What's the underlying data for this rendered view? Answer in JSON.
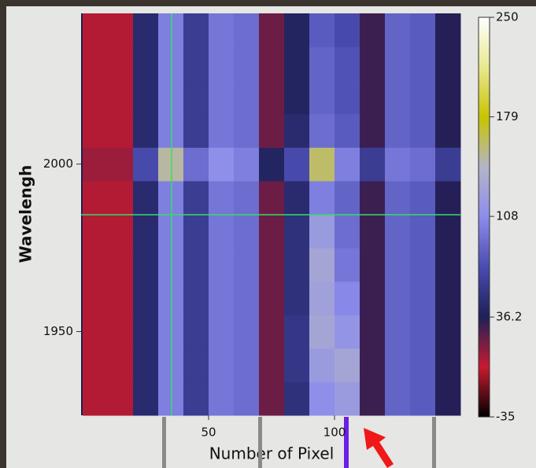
{
  "chart_data": {
    "type": "heatmap",
    "x_label": "Number of Pixel",
    "y_label": "Wavelengh",
    "x_bins": [
      0,
      10,
      20,
      30,
      40,
      50,
      60,
      70,
      80,
      90,
      100,
      110,
      120,
      130,
      140,
      150
    ],
    "y_bins": [
      1925,
      1935,
      1945,
      1955,
      1965,
      1975,
      1985,
      1995,
      2005,
      2015,
      2025,
      2035,
      2045
    ],
    "z": [
      [
        5,
        5,
        45,
        100,
        60,
        95,
        90,
        20,
        50,
        110,
        120,
        30,
        85,
        80,
        35
      ],
      [
        5,
        5,
        45,
        100,
        60,
        95,
        90,
        20,
        55,
        120,
        130,
        30,
        85,
        80,
        35
      ],
      [
        5,
        5,
        45,
        100,
        60,
        95,
        90,
        20,
        55,
        130,
        115,
        30,
        85,
        80,
        35
      ],
      [
        5,
        5,
        45,
        100,
        60,
        95,
        90,
        20,
        50,
        125,
        105,
        30,
        85,
        80,
        35
      ],
      [
        5,
        5,
        45,
        100,
        60,
        95,
        90,
        20,
        50,
        130,
        95,
        30,
        85,
        80,
        35
      ],
      [
        5,
        5,
        45,
        100,
        60,
        95,
        90,
        20,
        50,
        120,
        90,
        30,
        85,
        80,
        35
      ],
      [
        5,
        5,
        45,
        100,
        60,
        95,
        90,
        20,
        45,
        100,
        85,
        30,
        85,
        80,
        35
      ],
      [
        10,
        10,
        70,
        150,
        90,
        110,
        100,
        40,
        70,
        160,
        100,
        60,
        95,
        90,
        60
      ],
      [
        5,
        5,
        45,
        100,
        60,
        95,
        90,
        20,
        45,
        90,
        80,
        30,
        85,
        80,
        35
      ],
      [
        5,
        5,
        45,
        100,
        60,
        95,
        90,
        20,
        40,
        85,
        75,
        30,
        85,
        80,
        35
      ],
      [
        5,
        5,
        45,
        100,
        60,
        95,
        90,
        20,
        40,
        85,
        75,
        30,
        85,
        80,
        35
      ],
      [
        5,
        5,
        45,
        100,
        60,
        95,
        90,
        20,
        40,
        80,
        70,
        30,
        85,
        80,
        35
      ]
    ],
    "xlim": [
      0,
      150
    ],
    "ylim": [
      1925,
      2045
    ],
    "xticks": [
      50,
      100
    ],
    "yticks": [
      1950,
      2000
    ],
    "clim": [
      -35,
      250
    ],
    "cticks": [
      250,
      179,
      108,
      36.2,
      -35
    ],
    "colorscale": [
      "#000000",
      "#c81a30",
      "#1e2058",
      "#4a4cb0",
      "#8c8cec",
      "#b4b4c8",
      "#c8c400",
      "#e8e890",
      "#ffffff"
    ]
  }
}
